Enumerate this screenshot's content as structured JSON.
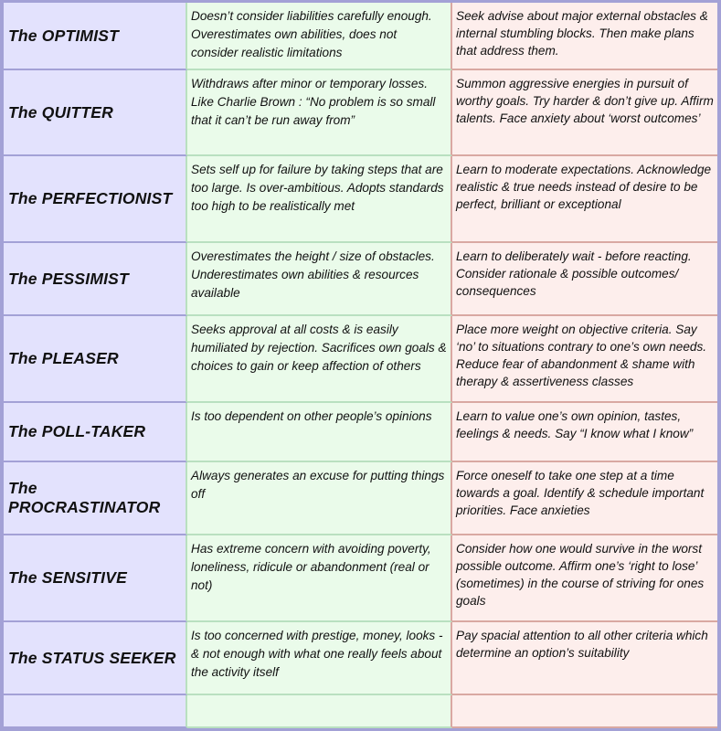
{
  "rows": [
    {
      "type": "The OPTIMIST",
      "problem": "Doesn’t consider liabilities carefully enough.  Overestimates own abilities, does not consider realistic limitations",
      "remedy": "Seek advise about major external obstacles & internal stumbling blocks. Then make plans that address them."
    },
    {
      "type": "The QUITTER",
      "problem": "Withdraws after minor or temporary losses. Like Charlie Brown : “No problem is so small that it can’t be run away from”",
      "remedy": "Summon aggressive energies in pursuit of worthy goals.  Try harder & don’t give up. Affirm talents. Face anxiety about ‘worst outcomes’"
    },
    {
      "type": "The PERFECTIONIST",
      "problem": "Sets self up for failure by taking steps that are too large.  Is over-ambitious. Adopts standards too high to be realistically met",
      "remedy": "Learn to moderate expectations. Acknowledge realistic  & true needs instead of desire to be perfect, brilliant or exceptional"
    },
    {
      "type": "The PESSIMIST",
      "problem": "Overestimates the height / size of obstacles. Underestimates own abilities & resources available",
      "remedy": "Learn to deliberately wait - before reacting.  Consider rationale & possible outcomes/ consequences"
    },
    {
      "type": "The PLEASER",
      "problem": "Seeks approval at all costs & is easily humiliated by rejection.  Sacrifices own goals & choices to gain or keep affection of others",
      "remedy": "Place more weight on objective criteria. Say ‘no’ to situations contrary to one’s own needs.  Reduce fear of abandonment & shame with therapy & assertiveness classes"
    },
    {
      "type": "The POLL-TAKER",
      "problem": "Is too dependent on other people’s opinions",
      "remedy": "Learn to value one’s own opinion, tastes, feelings & needs.  Say “I know what I know”"
    },
    {
      "type": "The PROCRASTINATOR",
      "problem": "Always generates an excuse for putting things off",
      "remedy": "Force oneself to take one step at a time towards a goal.  Identify & schedule important priorities. Face anxieties"
    },
    {
      "type": "The SENSITIVE",
      "problem": "Has extreme concern with avoiding poverty, loneliness, ridicule or abandonment (real or not)",
      "remedy": "Consider how one would survive in the worst possible outcome.  Affirm one’s ‘right to lose’ (sometimes) in the course of striving for ones goals"
    },
    {
      "type": "The STATUS SEEKER",
      "problem": "Is too concerned with prestige, money, looks - & not enough with what one really feels about the activity itself",
      "remedy": "Pay spacial attention to all other criteria which determine an option’s suitability"
    },
    {
      "type": "",
      "problem": "",
      "remedy": ""
    }
  ],
  "colors": {
    "border": "#a3a1d6",
    "col_type": "#e3e2fd",
    "col_problem": "#eafbea",
    "col_remedy": "#fdeeec"
  }
}
